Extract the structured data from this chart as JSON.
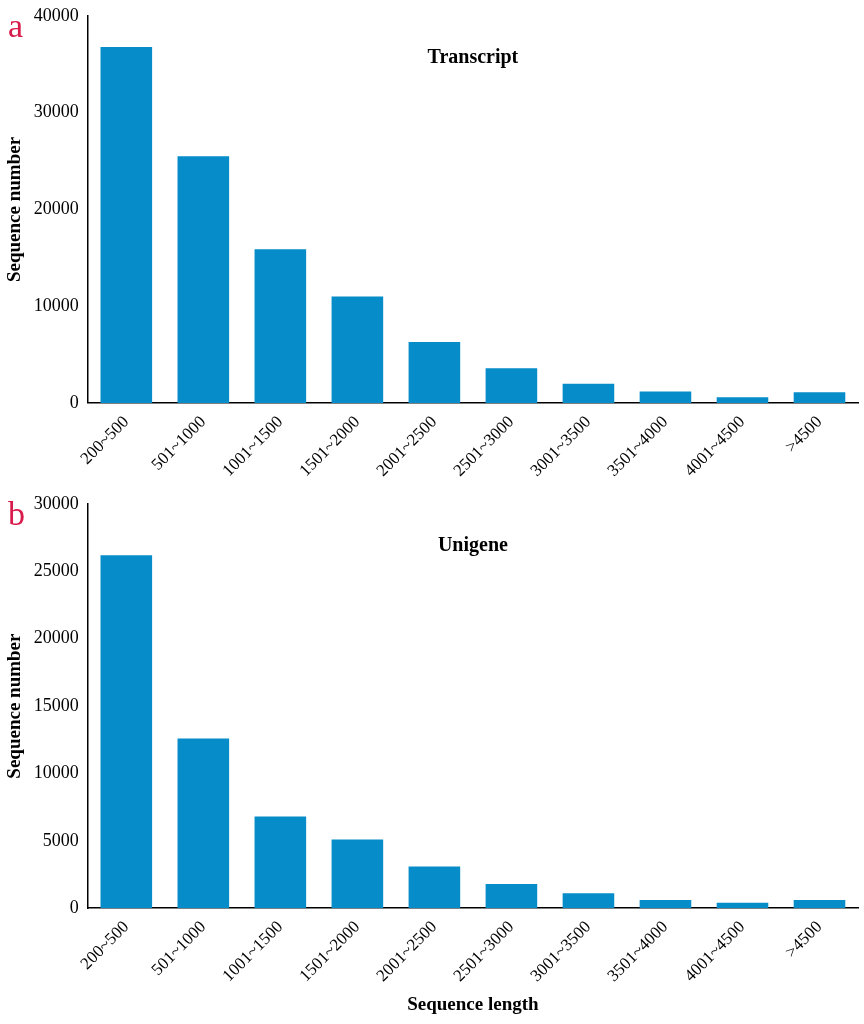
{
  "chart_data": [
    {
      "type": "bar",
      "title": "Transcript",
      "ylabel": "Sequence number",
      "annotations": [
        "a"
      ],
      "categories": [
        "200~500",
        "501~1000",
        "1001~1500",
        "1501~2000",
        "2001~2500",
        "2501~3000",
        "3001~3500",
        "3501~4000",
        "4001~4500",
        ">4500"
      ],
      "values": [
        36800,
        25500,
        15900,
        11000,
        6300,
        3600,
        2000,
        1200,
        600,
        1100
      ],
      "color": "#068cc8",
      "ylim": [
        0,
        40000
      ],
      "yticks": [
        0,
        10000,
        20000,
        30000,
        40000
      ],
      "grid": false,
      "legend": false
    },
    {
      "type": "bar",
      "title": "Unigene",
      "xlabel": "Sequence length",
      "ylabel": "Sequence number",
      "annotations": [
        "b"
      ],
      "categories": [
        "200~500",
        "501~1000",
        "1001~1500",
        "1501~2000",
        "2001~2500",
        "2501~3000",
        "3001~3500",
        "3501~4000",
        "4001~4500",
        ">4500"
      ],
      "values": [
        26200,
        12600,
        6800,
        5100,
        3100,
        1800,
        1100,
        600,
        400,
        600
      ],
      "color": "#068cc8",
      "ylim": [
        0,
        30000
      ],
      "yticks": [
        0,
        5000,
        10000,
        15000,
        20000,
        25000,
        30000
      ],
      "grid": false,
      "legend": false
    }
  ]
}
